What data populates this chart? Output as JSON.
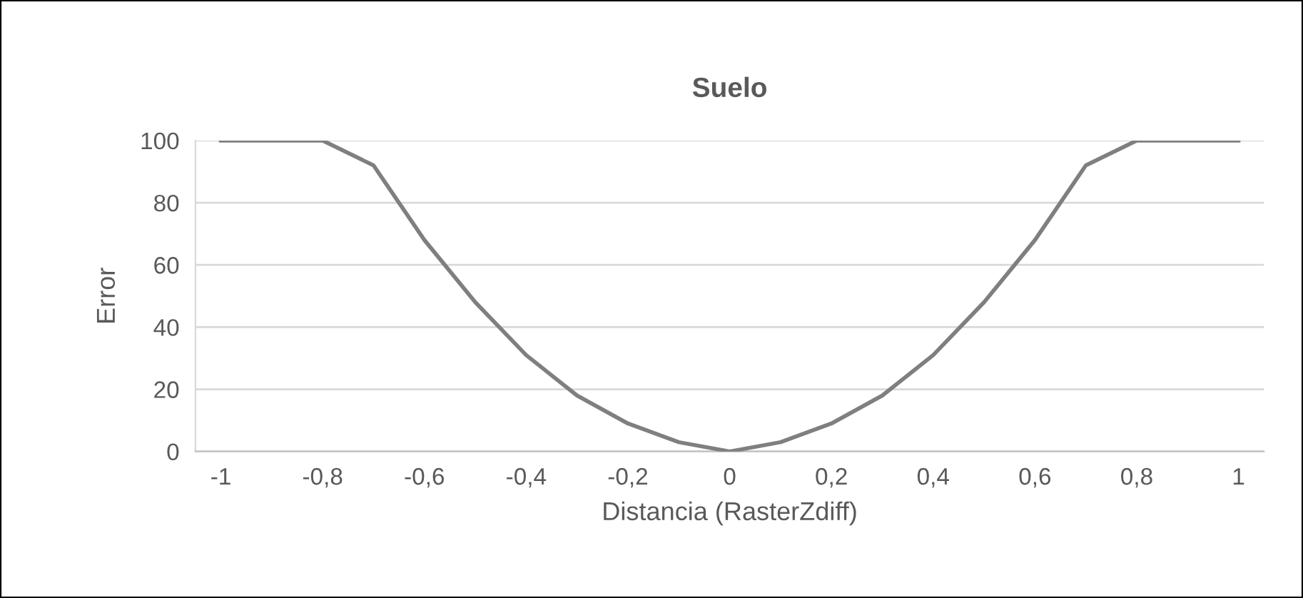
{
  "chart_data": {
    "type": "line",
    "title": "Suelo",
    "xlabel": "Distancia (RasterZdiff)",
    "ylabel": "Error",
    "x": [
      -1,
      -0.9,
      -0.8,
      -0.7,
      -0.6,
      -0.5,
      -0.4,
      -0.3,
      -0.2,
      -0.1,
      0,
      0.1,
      0.2,
      0.3,
      0.4,
      0.5,
      0.6,
      0.7,
      0.8,
      0.9,
      1
    ],
    "series": [
      {
        "color": "#7f7f7f",
        "values": [
          100,
          100,
          100,
          92,
          68,
          48,
          31,
          18,
          9,
          3,
          0,
          3,
          9,
          18,
          31,
          48,
          68,
          92,
          100,
          100,
          100
        ]
      }
    ],
    "xlim": [
      -1.05,
      1.05
    ],
    "xticks": [
      -1,
      {
        "value": -0.8,
        "label": "-0,8"
      },
      {
        "value": -0.6,
        "label": "-0,6"
      },
      {
        "value": -0.4,
        "label": "-0,4"
      },
      {
        "value": -0.2,
        "label": "-0,2"
      },
      0,
      {
        "value": 0.2,
        "label": "0,2"
      },
      {
        "value": 0.4,
        "label": "0,4"
      },
      {
        "value": 0.6,
        "label": "0,6"
      },
      {
        "value": 0.8,
        "label": "0,8"
      },
      1
    ],
    "ylim": [
      0,
      100
    ],
    "yticks": [
      0,
      20,
      40,
      60,
      80,
      100
    ],
    "grid": "y",
    "marker": "none",
    "line_style": "solid"
  }
}
